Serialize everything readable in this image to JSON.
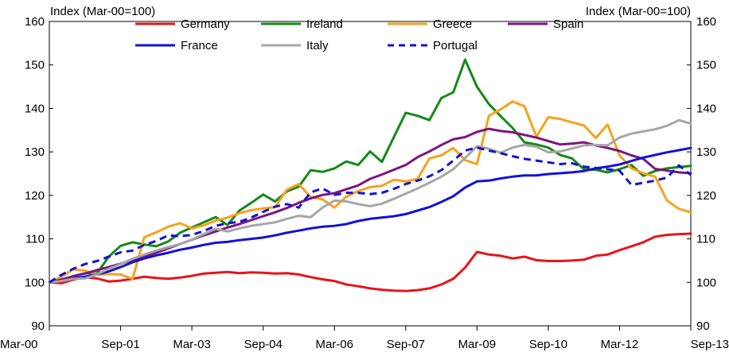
{
  "chart_data": {
    "type": "line",
    "ylabel_left": "Index (Mar-00=100)",
    "ylabel_right": "Index (Mar-00=100)",
    "ylim": [
      90,
      160
    ],
    "yticks": [
      90,
      100,
      110,
      120,
      130,
      140,
      150,
      160
    ],
    "x_tick_labels": [
      "Mar-00",
      "Sep-01",
      "Mar-03",
      "Sep-04",
      "Mar-06",
      "Sep-07",
      "Mar-09",
      "Sep-10",
      "Mar-12",
      "Sep-13"
    ],
    "x_tick_quarter_index": [
      0,
      6,
      12,
      18,
      24,
      30,
      36,
      42,
      48,
      54
    ],
    "x_quarter_count": 55,
    "grid": false,
    "legend": "top, inside plot area",
    "series": [
      {
        "name": "Germany",
        "color": "#e8141a",
        "dash": "solid",
        "values": [
          100,
          99.8,
          100.6,
          101.2,
          100.9,
          100.2,
          100.4,
          100.8,
          101.3,
          101.0,
          100.8,
          101.1,
          101.5,
          102.0,
          102.2,
          102.4,
          102.1,
          102.3,
          102.2,
          102.0,
          102.1,
          101.8,
          101.2,
          100.7,
          100.3,
          99.5,
          99.1,
          98.6,
          98.3,
          98.1,
          98.0,
          98.2,
          98.6,
          99.5,
          100.8,
          103.4,
          107.0,
          106.4,
          106.1,
          105.5,
          105.9,
          105.1,
          104.9,
          104.9,
          105.0,
          105.2,
          106.1,
          106.4,
          107.4,
          108.3,
          109.2,
          110.5,
          110.9,
          111.1,
          111.2
        ]
      },
      {
        "name": "Ireland",
        "color": "#138a17",
        "dash": "solid",
        "values": [
          100,
          100.4,
          101.4,
          102.1,
          102.0,
          105.9,
          108.4,
          109.2,
          108.7,
          108.3,
          109.4,
          111.4,
          112.6,
          113.8,
          115.0,
          113.2,
          116.5,
          118.3,
          120.2,
          118.6,
          120.9,
          122.0,
          125.8,
          125.4,
          126.2,
          127.8,
          127.0,
          130.1,
          127.7,
          133.4,
          139.0,
          138.3,
          137.3,
          142.4,
          143.7,
          151.2,
          145.0,
          141.0,
          138.2,
          135.5,
          132.2,
          131.7,
          131.0,
          129.3,
          128.5,
          126.0,
          125.9,
          125.3,
          126.0,
          127.0,
          124.5,
          125.6,
          126.2,
          126.5,
          126.8
        ]
      },
      {
        "name": "Greece",
        "color": "#f9a11b",
        "dash": "solid",
        "values": [
          100,
          101.2,
          103.0,
          102.7,
          101.8,
          101.9,
          101.8,
          100.8,
          110.4,
          111.5,
          112.8,
          113.6,
          112.4,
          113.1,
          114.2,
          114.9,
          115.9,
          116.6,
          117.0,
          117.3,
          121.3,
          122.6,
          119.6,
          119.1,
          117.2,
          119.7,
          121.0,
          121.9,
          122.2,
          123.6,
          123.2,
          123.8,
          128.5,
          129.2,
          130.9,
          128.1,
          127.2,
          138.3,
          139.8,
          141.6,
          140.5,
          133.5,
          138.0,
          137.6,
          136.8,
          136.1,
          133.2,
          136.3,
          129.2,
          126.2,
          125.1,
          124.3,
          118.8,
          116.9,
          116.1
        ]
      },
      {
        "name": "Spain",
        "color": "#7d157f",
        "dash": "solid",
        "values": [
          100,
          100.6,
          101.4,
          102.0,
          102.8,
          103.5,
          104.3,
          105.1,
          105.9,
          106.8,
          107.8,
          108.8,
          109.8,
          110.8,
          111.7,
          112.6,
          113.4,
          114.3,
          115.2,
          116.1,
          117.1,
          118.3,
          119.3,
          120.1,
          120.5,
          121.4,
          122.3,
          123.8,
          124.8,
          125.9,
          127.0,
          128.8,
          130.1,
          131.6,
          132.9,
          133.4,
          134.6,
          135.3,
          134.8,
          134.5,
          133.9,
          133.3,
          132.5,
          131.7,
          131.9,
          132.2,
          131.5,
          130.9,
          130.2,
          129.2,
          128.4,
          126.1,
          125.7,
          125.3,
          125.1
        ]
      },
      {
        "name": "France",
        "color": "#1212d6",
        "dash": "solid",
        "values": [
          100,
          100.4,
          100.9,
          101.3,
          101.8,
          102.5,
          103.5,
          104.6,
          105.5,
          106.2,
          106.8,
          107.5,
          108.0,
          108.6,
          109.1,
          109.3,
          109.7,
          110.0,
          110.3,
          110.8,
          111.4,
          111.9,
          112.4,
          112.8,
          113.0,
          113.4,
          114.1,
          114.6,
          114.9,
          115.2,
          115.7,
          116.5,
          117.3,
          118.5,
          119.8,
          121.8,
          123.2,
          123.4,
          123.9,
          124.3,
          124.6,
          124.6,
          124.9,
          125.1,
          125.3,
          125.6,
          126.2,
          126.6,
          127.1,
          127.9,
          128.7,
          129.3,
          129.9,
          130.4,
          130.9
        ]
      },
      {
        "name": "Italy",
        "color": "#a6a6a6",
        "dash": "solid",
        "values": [
          100,
          100.3,
          100.8,
          100.9,
          101.8,
          103.1,
          104.2,
          105.4,
          106.4,
          107.3,
          108.1,
          108.8,
          109.8,
          111.1,
          112.3,
          111.7,
          112.4,
          113.0,
          113.4,
          113.8,
          114.6,
          115.3,
          115.0,
          117.2,
          118.8,
          118.6,
          118.0,
          117.5,
          118.1,
          119.2,
          120.4,
          121.6,
          122.9,
          124.3,
          126.0,
          128.6,
          131.3,
          130.7,
          129.8,
          131.0,
          131.6,
          131.2,
          129.9,
          130.1,
          130.8,
          131.5,
          131.6,
          131.5,
          133.3,
          134.2,
          134.7,
          135.2,
          136.0,
          137.3,
          136.5
        ]
      },
      {
        "name": "Portugal",
        "color": "#1212d6",
        "dash": "dashed",
        "values": [
          100,
          101.7,
          103.1,
          104.2,
          104.9,
          105.9,
          106.9,
          107.3,
          108.6,
          109.5,
          110.8,
          110.6,
          110.9,
          111.8,
          113.0,
          113.6,
          113.9,
          114.9,
          116.2,
          117.4,
          118.0,
          117.2,
          120.7,
          121.6,
          120.1,
          120.6,
          120.6,
          120.3,
          120.6,
          121.5,
          122.6,
          123.4,
          124.4,
          125.8,
          128.0,
          130.3,
          131.0,
          130.3,
          129.7,
          129.0,
          128.4,
          128.0,
          127.6,
          127.2,
          127.4,
          126.6,
          126.3,
          126.0,
          125.7,
          122.4,
          122.9,
          123.4,
          124.1,
          126.9,
          124.7
        ]
      }
    ]
  }
}
